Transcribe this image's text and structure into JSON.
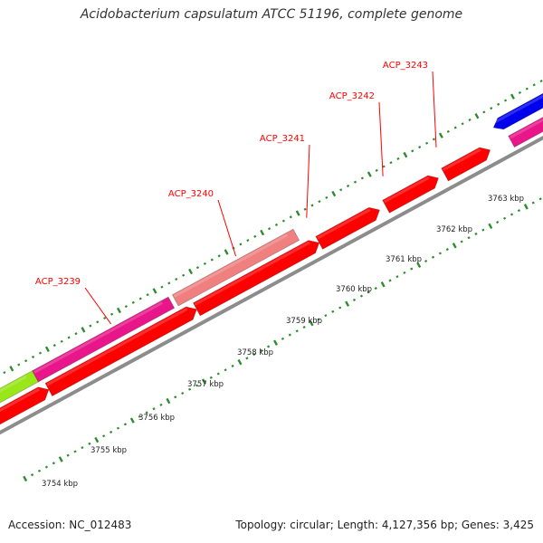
{
  "title": "Acidobacterium capsulatum ATCC 51196, complete genome",
  "footer": {
    "accession_label": "Accession:",
    "accession": "NC_012483",
    "topology_label": "Topology:",
    "topology": "circular",
    "length_label": "Length:",
    "length": "4,127,356 bp",
    "genes_label": "Genes:",
    "genes": "3,425"
  },
  "colors": {
    "backbone": "#8c8c8c",
    "tick": "#2e8b2e",
    "red_feature": "#ff0000",
    "magenta_feature": "#e8168a",
    "light_red_feature": "#f08080",
    "lime_feature": "#99e619",
    "blue_feature": "#0000ee",
    "label": "#ff0000"
  },
  "genes": [
    {
      "name": "ACP_3239"
    },
    {
      "name": "ACP_3240"
    },
    {
      "name": "ACP_3241"
    },
    {
      "name": "ACP_3242"
    },
    {
      "name": "ACP_3243"
    }
  ],
  "scale_labels": [
    "3754 kbp",
    "3755 kbp",
    "3756 kbp",
    "3757 kbp",
    "3758 kbp",
    "3759 kbp",
    "3760 kbp",
    "3761 kbp",
    "3762 kbp",
    "3763 kbp"
  ]
}
